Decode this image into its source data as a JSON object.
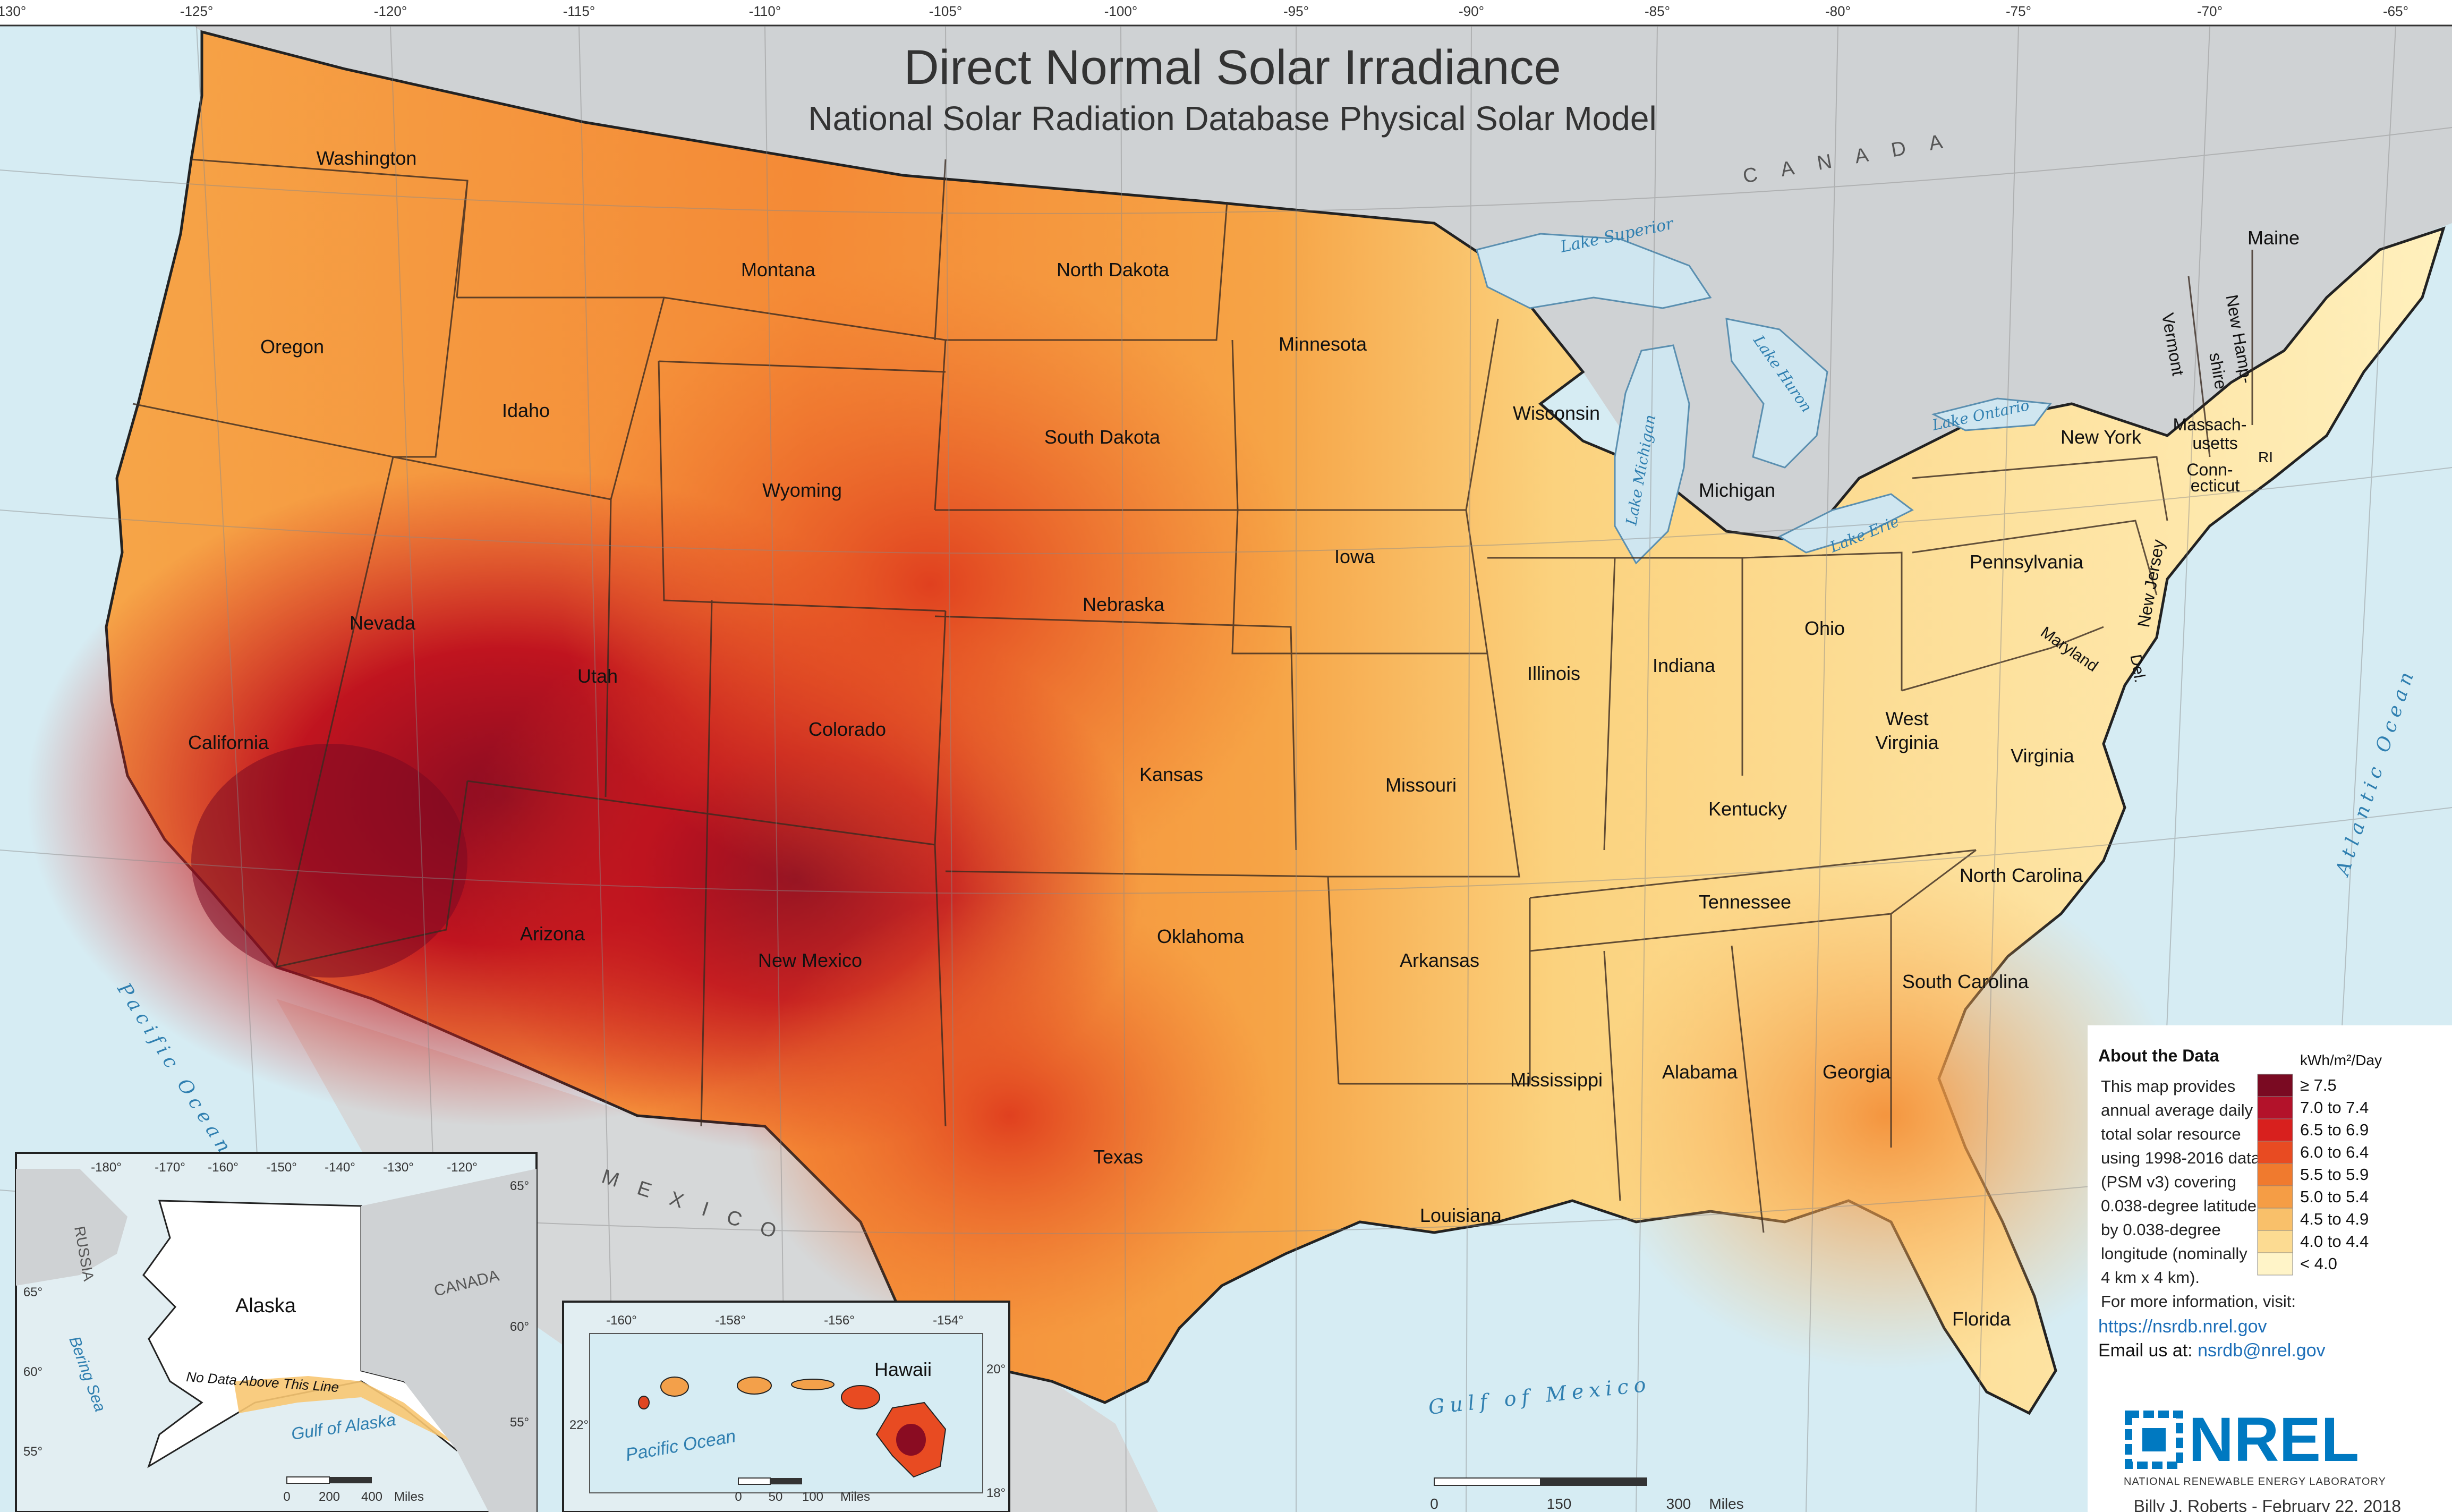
{
  "title": "Direct Normal Solar Irradiance",
  "subtitle": "National Solar Radiation Database Physical Solar Model",
  "longitude_labels": [
    "-130°",
    "-125°",
    "-120°",
    "-115°",
    "-110°",
    "-105°",
    "-100°",
    "-95°",
    "-90°",
    "-85°",
    "-80°",
    "-75°",
    "-70°",
    "-65°"
  ],
  "countries": {
    "canada": "C A N A D A",
    "mexico": "M E X I C O"
  },
  "water": {
    "pacific": "Pacific Ocean",
    "atlantic": "Atlantic Ocean",
    "gulf": "Gulf of Mexico",
    "lake_superior": "Lake Superior",
    "lake_michigan": "Lake Michigan",
    "lake_huron": "Lake Huron",
    "lake_ontario": "Lake Ontario",
    "lake_erie": "Lake Erie"
  },
  "states": {
    "washington": "Washington",
    "oregon": "Oregon",
    "california": "California",
    "idaho": "Idaho",
    "nevada": "Nevada",
    "montana": "Montana",
    "wyoming": "Wyoming",
    "utah": "Utah",
    "arizona": "Arizona",
    "colorado": "Colorado",
    "new_mexico": "New Mexico",
    "north_dakota": "North Dakota",
    "south_dakota": "South Dakota",
    "nebraska": "Nebraska",
    "kansas": "Kansas",
    "oklahoma": "Oklahoma",
    "texas": "Texas",
    "minnesota": "Minnesota",
    "iowa": "Iowa",
    "missouri": "Missouri",
    "arkansas": "Arkansas",
    "louisiana": "Louisiana",
    "wisconsin": "Wisconsin",
    "illinois": "Illinois",
    "michigan": "Michigan",
    "indiana": "Indiana",
    "ohio": "Ohio",
    "kentucky": "Kentucky",
    "tennessee": "Tennessee",
    "mississippi": "Mississippi",
    "alabama": "Alabama",
    "georgia": "Georgia",
    "florida": "Florida",
    "south_carolina": "South Carolina",
    "north_carolina": "North Carolina",
    "virginia": "Virginia",
    "west_virginia_1": "West",
    "west_virginia_2": "Virginia",
    "pennsylvania": "Pennsylvania",
    "new_york": "New York",
    "maine": "Maine",
    "vermont": "Vermont",
    "new_hampshire_1": "New Hamp-",
    "new_hampshire_2": "shire",
    "massachusetts_1": "Massach-",
    "massachusetts_2": "usetts",
    "connecticut_1": "Conn-",
    "connecticut_2": "ecticut",
    "rhode_island": "RI",
    "new_jersey": "New Jersey",
    "maryland": "Maryland",
    "delaware": "Del."
  },
  "alaska_inset": {
    "label": "Alaska",
    "russia": "RUSSIA",
    "canada": "CANADA",
    "bering_sea": "Bering Sea",
    "gulf_of_alaska": "Gulf of Alaska",
    "no_data_note": "No Data Above This Line",
    "lon_labels": [
      "-180°",
      "-170°",
      "-160°",
      "-150°",
      "-140°",
      "-130°",
      "-120°"
    ],
    "lat_labels_left": [
      "65°",
      "60°",
      "55°"
    ],
    "lat_labels_right": [
      "65°",
      "60°",
      "55°"
    ],
    "scale": [
      "0",
      "200",
      "400",
      "Miles"
    ]
  },
  "hawaii_inset": {
    "label": "Hawaii",
    "ocean": "Pacific Ocean",
    "lon_labels": [
      "-160°",
      "-158°",
      "-156°",
      "-154°"
    ],
    "lat_labels": [
      "22°",
      "20°",
      "18°"
    ],
    "scale": [
      "0",
      "50",
      "100",
      "Miles"
    ]
  },
  "main_scale": [
    "0",
    "150",
    "300",
    "Miles"
  ],
  "about": {
    "heading": "About the Data",
    "lines": [
      "This map provides",
      "annual average daily",
      "total solar resource",
      "using 1998-2016 data",
      "(PSM v3) covering",
      "0.038-degree latitude",
      "by 0.038-degree",
      "longitude (nominally",
      "4 km x 4 km)."
    ],
    "more_info": "For more information, visit:",
    "url": "https://nsrdb.nrel.gov",
    "email_prefix": "Email us at: ",
    "email": "nsrdb@nrel.gov"
  },
  "legend": {
    "unit": "kWh/m²/Day",
    "classes": [
      {
        "label": "≥ 7.5",
        "color": "#7a0a22"
      },
      {
        "label": "7.0 to 7.4",
        "color": "#b3122a"
      },
      {
        "label": "6.5 to 6.9",
        "color": "#d8201e"
      },
      {
        "label": "6.0 to 6.4",
        "color": "#e84b22"
      },
      {
        "label": "5.5 to 5.9",
        "color": "#f07a2e"
      },
      {
        "label": "5.0 to 5.4",
        "color": "#f59d45"
      },
      {
        "label": "4.5 to 4.9",
        "color": "#f9c06a"
      },
      {
        "label": "4.0 to 4.4",
        "color": "#fcdb92"
      },
      {
        "label": "< 4.0",
        "color": "#fff4c8"
      }
    ]
  },
  "logo": {
    "text": "NREL",
    "tagline": "NATIONAL RENEWABLE ENERGY LABORATORY",
    "color": "#0079c1"
  },
  "credit": "Billy J. Roberts - February 22, 2018"
}
